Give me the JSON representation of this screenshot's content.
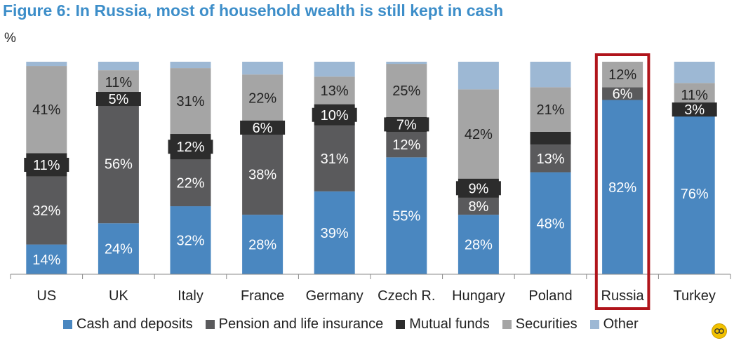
{
  "chart_data": {
    "type": "bar",
    "stacked": true,
    "title": "Figure 6: In Russia, most of household wealth is still kept in cash",
    "ylabel": "%",
    "ylim": [
      0,
      100
    ],
    "categories": [
      "US",
      "UK",
      "Italy",
      "France",
      "Germany",
      "Czech R.",
      "Hungary",
      "Poland",
      "Russia",
      "Turkey"
    ],
    "highlight_category": "Russia",
    "series": [
      {
        "name": "Cash and deposits",
        "color": "#4a87c0",
        "values": [
          14,
          24,
          32,
          28,
          39,
          55,
          28,
          48,
          82,
          76
        ],
        "labels": [
          "14%",
          "24%",
          "32%",
          "28%",
          "39%",
          "55%",
          "28%",
          "48%",
          "82%",
          "76%"
        ]
      },
      {
        "name": "Pension and life insurance",
        "color": "#5a5a5c",
        "values": [
          32,
          56,
          22,
          38,
          31,
          12,
          8,
          13,
          6,
          0
        ],
        "labels": [
          "32%",
          "56%",
          "22%",
          "38%",
          "31%",
          "12%",
          "8%",
          "13%",
          "6%",
          ""
        ]
      },
      {
        "name": "Mutual funds",
        "color": "#2c2c2c",
        "values": [
          11,
          5,
          12,
          6,
          10,
          7,
          9,
          6,
          0,
          3
        ],
        "labels": [
          "11%",
          "5%",
          "12%",
          "6%",
          "10%",
          "7%",
          "9%",
          "",
          "",
          "3%"
        ]
      },
      {
        "name": "Securities",
        "color": "#a5a5a5",
        "values": [
          41,
          11,
          31,
          22,
          13,
          25,
          42,
          21,
          12,
          11
        ],
        "labels": [
          "41%",
          "11%",
          "31%",
          "22%",
          "13%",
          "25%",
          "42%",
          "21%",
          "12%",
          "11%"
        ]
      },
      {
        "name": "Other",
        "color": "#9db8d4",
        "values": [
          2,
          4,
          3,
          6,
          7,
          1,
          13,
          12,
          0,
          10
        ],
        "labels": [
          "",
          "",
          "",
          "",
          "",
          "",
          "",
          "",
          "",
          ""
        ]
      }
    ],
    "grid": false,
    "legend_position": "bottom"
  }
}
